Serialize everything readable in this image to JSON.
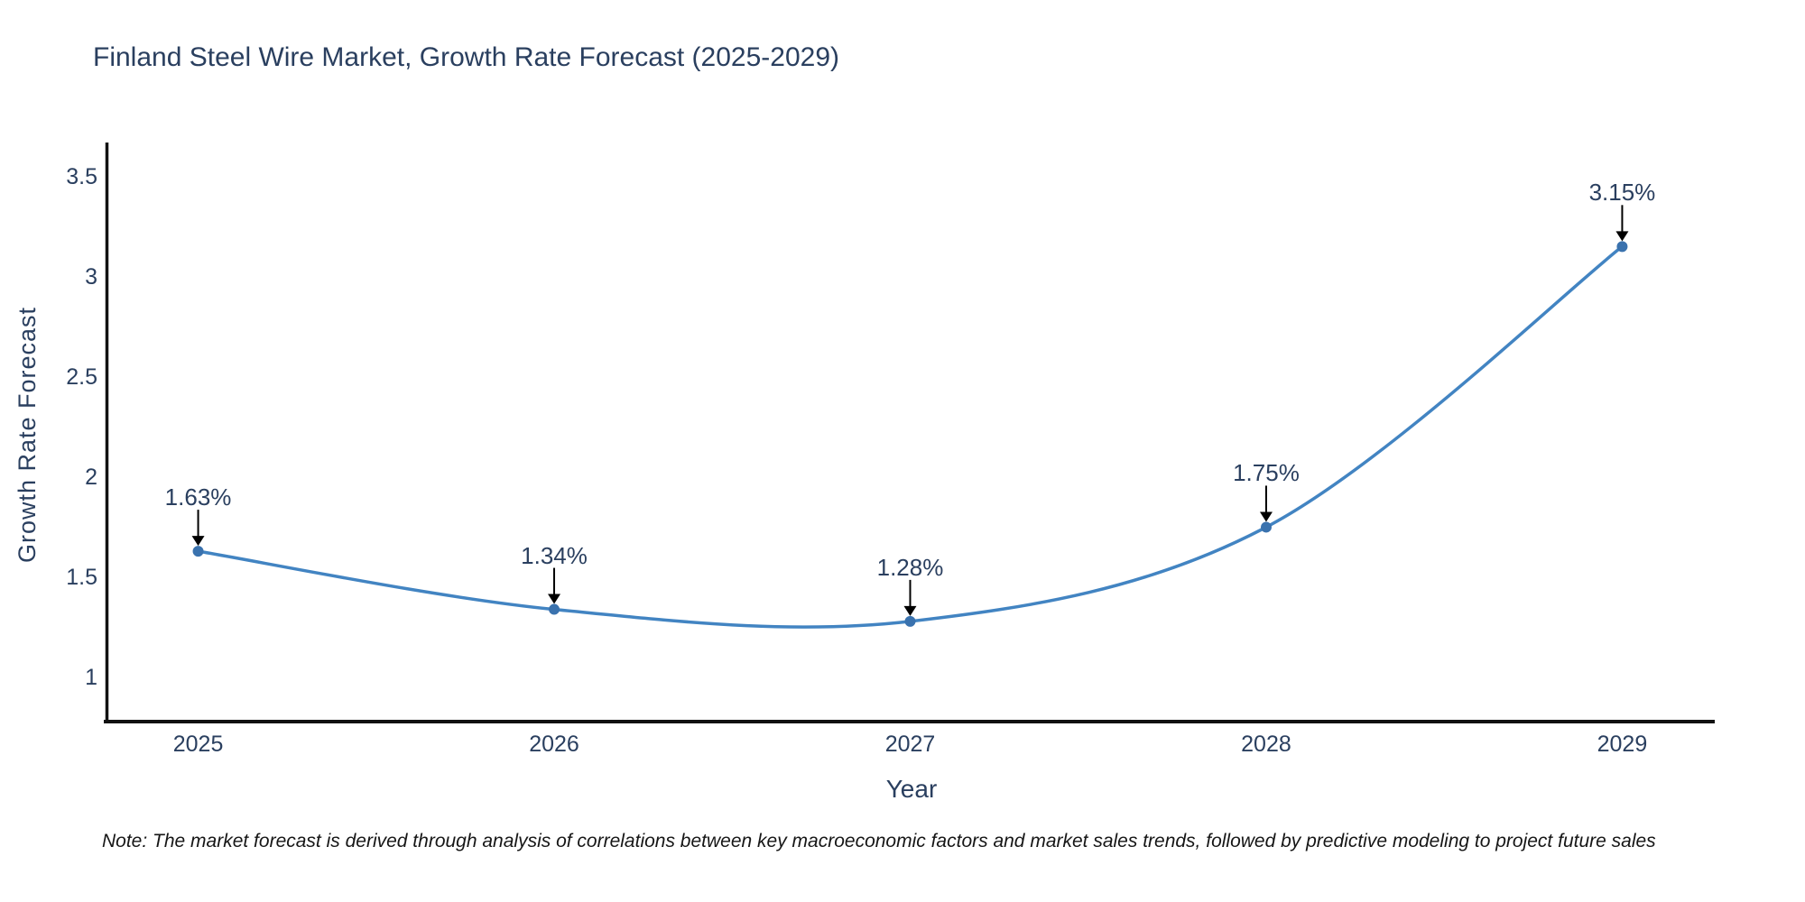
{
  "title": "Finland Steel Wire Market, Growth Rate Forecast (2025-2029)",
  "note": "Note: The market forecast is derived through analysis of correlations between key macroeconomic factors and market sales trends, followed by predictive modeling to project future sales",
  "chart_data": {
    "type": "line",
    "line_shape": "spline",
    "title": "Finland Steel Wire Market, Growth Rate Forecast (2025-2029)",
    "xlabel": "Year",
    "ylabel": "Growth Rate Forecast",
    "x": [
      2025,
      2026,
      2027,
      2028,
      2029
    ],
    "y": [
      1.63,
      1.34,
      1.28,
      1.75,
      3.15
    ],
    "point_labels": [
      "1.63%",
      "1.34%",
      "1.28%",
      "1.75%",
      "3.15%"
    ],
    "x_tick_labels": [
      "2025",
      "2026",
      "2027",
      "2028",
      "2029"
    ],
    "x_tick_values": [
      2025,
      2026,
      2027,
      2028,
      2029
    ],
    "y_tick_labels": [
      "1",
      "1.5",
      "2",
      "2.5",
      "3",
      "3.5"
    ],
    "y_tick_values": [
      1,
      1.5,
      2,
      2.5,
      3,
      3.5
    ],
    "xlim": [
      2024.74,
      2029.26
    ],
    "ylim": [
      0.78,
      3.66
    ],
    "grid": false,
    "legend_position": "none",
    "annotations_have_arrows": true,
    "colors": {
      "line": "#4284c2",
      "marker": "#3a72ae",
      "text": "#2a3f5f",
      "axis": "#111111",
      "annotation_arrow": "#000000",
      "background": "#ffffff"
    }
  }
}
